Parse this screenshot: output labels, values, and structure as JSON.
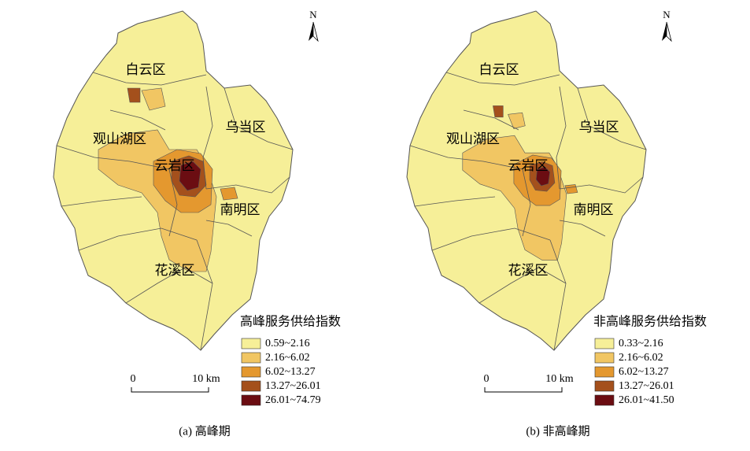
{
  "panels": [
    {
      "caption": "(a) 高峰期",
      "north": "N",
      "district_labels": [
        "白云区",
        "乌当区",
        "观山湖区",
        "云岩区",
        "南明区",
        "花溪区"
      ],
      "legend": {
        "title": "高峰服务供给指数",
        "items": [
          "0.59~2.16",
          "2.16~6.02",
          "6.02~13.27",
          "13.27~26.01",
          "26.01~74.79"
        ],
        "colors": [
          "#f6ef98",
          "#f1c663",
          "#e4982f",
          "#a4501c",
          "#6b0d12"
        ]
      },
      "scale_bar": {
        "start": "0",
        "end": "10 km"
      }
    },
    {
      "caption": "(b) 非高峰期",
      "north": "N",
      "district_labels": [
        "白云区",
        "乌当区",
        "观山湖区",
        "云岩区",
        "南明区",
        "花溪区"
      ],
      "legend": {
        "title": "非高峰服务供给指数",
        "items": [
          "0.33~2.16",
          "2.16~6.02",
          "6.02~13.27",
          "13.27~26.01",
          "26.01~41.50"
        ],
        "colors": [
          "#f6ef98",
          "#f1c663",
          "#e4982f",
          "#a4501c",
          "#6b0d12"
        ]
      },
      "scale_bar": {
        "start": "0",
        "end": "10 km"
      }
    }
  ]
}
